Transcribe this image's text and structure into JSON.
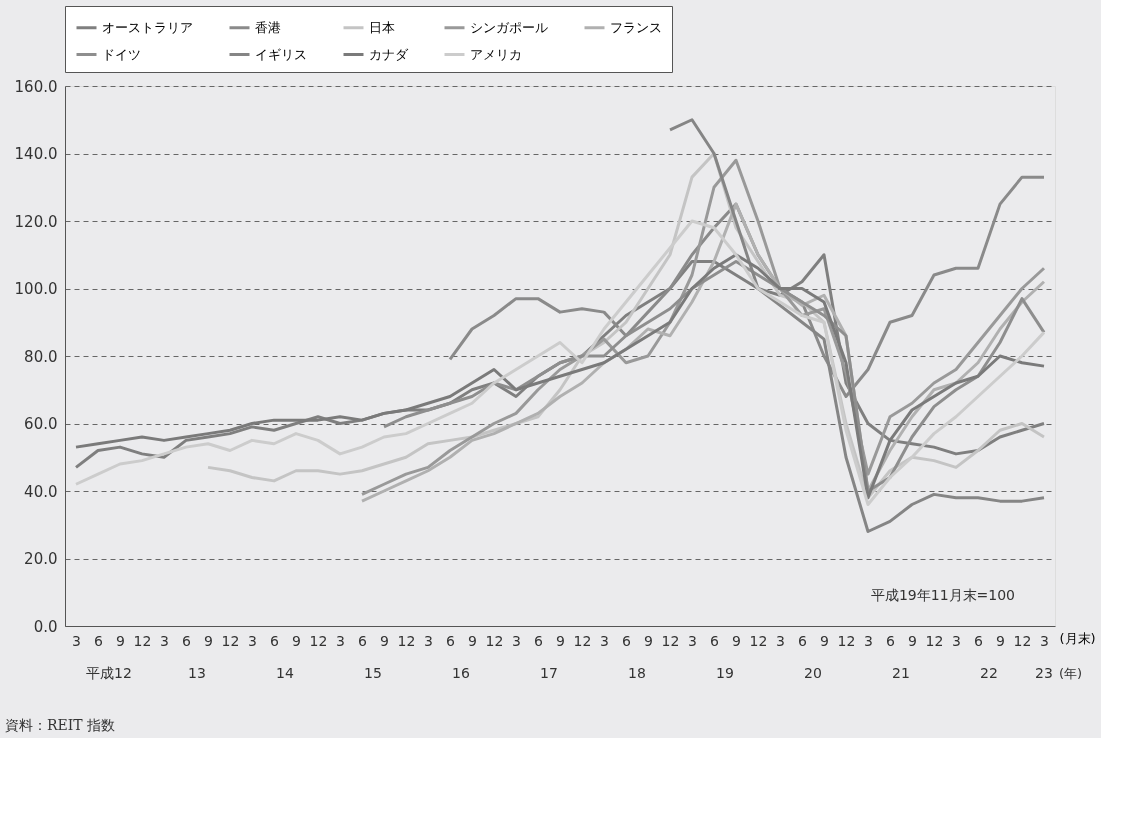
{
  "chart_data": {
    "type": "line",
    "categories": [
      "3",
      "6",
      "9",
      "12",
      "3",
      "6",
      "9",
      "12",
      "3",
      "6",
      "9",
      "12",
      "3",
      "6",
      "9",
      "12",
      "3",
      "6",
      "9",
      "12",
      "3",
      "6",
      "9",
      "12",
      "3",
      "6",
      "9",
      "12",
      "3",
      "6",
      "9",
      "12",
      "3",
      "6",
      "9",
      "12",
      "3",
      "6",
      "9",
      "12",
      "3",
      "6",
      "9",
      "12",
      "3"
    ],
    "series": [
      {
        "name": "オーストラリア",
        "color": "#7f7f7f",
        "values": [
          47,
          52,
          53,
          51,
          50,
          55,
          56,
          57,
          59,
          58,
          60,
          62,
          60,
          61,
          63,
          64,
          64,
          66,
          70,
          72,
          68,
          74,
          78,
          80,
          86,
          92,
          96,
          100,
          108,
          108,
          104,
          100,
          98,
          102,
          110,
          72,
          60,
          55,
          54,
          53,
          51,
          52,
          56,
          58,
          60
        ]
      },
      {
        "name": "香港",
        "color": "#8a8a8a",
        "values": [
          null,
          null,
          null,
          null,
          null,
          null,
          null,
          null,
          null,
          null,
          null,
          null,
          null,
          null,
          null,
          null,
          null,
          79,
          88,
          92,
          97,
          97,
          93,
          94,
          93,
          86,
          93,
          100,
          110,
          118,
          125,
          110,
          100,
          96,
          80,
          68,
          76,
          90,
          92,
          104,
          106,
          106,
          125,
          133,
          133
        ]
      },
      {
        "name": "日本",
        "color": "#c4c4c4",
        "values": [
          null,
          null,
          null,
          null,
          null,
          null,
          47,
          46,
          44,
          43,
          46,
          46,
          45,
          46,
          48,
          50,
          54,
          55,
          56,
          58,
          60,
          62,
          70,
          80,
          84,
          90,
          100,
          110,
          133,
          140,
          118,
          108,
          98,
          96,
          90,
          60,
          38,
          46,
          50,
          49,
          47,
          52,
          58,
          60,
          56
        ]
      },
      {
        "name": "シンガポール",
        "color": "#999999",
        "values": [
          null,
          null,
          null,
          null,
          null,
          null,
          null,
          null,
          null,
          null,
          null,
          null,
          null,
          39,
          42,
          45,
          47,
          52,
          56,
          60,
          63,
          70,
          76,
          80,
          85,
          78,
          80,
          90,
          104,
          130,
          138,
          120,
          100,
          92,
          94,
          75,
          45,
          62,
          66,
          72,
          76,
          84,
          92,
          100,
          106
        ]
      },
      {
        "name": "フランス",
        "color": "#b0b0b0",
        "values": [
          null,
          null,
          null,
          null,
          null,
          null,
          null,
          null,
          null,
          null,
          null,
          null,
          null,
          37,
          40,
          43,
          46,
          50,
          55,
          57,
          60,
          63,
          68,
          72,
          78,
          82,
          88,
          86,
          96,
          108,
          125,
          110,
          100,
          95,
          98,
          86,
          40,
          52,
          62,
          70,
          72,
          78,
          88,
          96,
          102
        ]
      },
      {
        "name": "ドイツ",
        "color": "#8e8e8e",
        "values": [
          null,
          null,
          null,
          null,
          null,
          null,
          null,
          null,
          null,
          null,
          null,
          null,
          null,
          null,
          59,
          62,
          64,
          66,
          68,
          72,
          70,
          74,
          78,
          80,
          80,
          86,
          90,
          94,
          100,
          104,
          108,
          104,
          100,
          96,
          92,
          86,
          40,
          44,
          56,
          65,
          70,
          74,
          84,
          97,
          87
        ]
      },
      {
        "name": "イギリス",
        "color": "#858585",
        "values": [
          null,
          null,
          null,
          null,
          null,
          null,
          null,
          null,
          null,
          null,
          null,
          null,
          null,
          null,
          null,
          null,
          null,
          null,
          null,
          null,
          null,
          null,
          null,
          null,
          null,
          null,
          null,
          147,
          150,
          140,
          120,
          100,
          95,
          90,
          85,
          50,
          28,
          31,
          36,
          39,
          38,
          38,
          37,
          37,
          38
        ]
      },
      {
        "name": "カナダ",
        "color": "#7a7a7a",
        "values": [
          53,
          54,
          55,
          56,
          55,
          56,
          57,
          58,
          60,
          61,
          61,
          61,
          62,
          61,
          63,
          64,
          66,
          68,
          72,
          76,
          70,
          72,
          74,
          76,
          78,
          82,
          86,
          90,
          100,
          106,
          110,
          106,
          100,
          100,
          96,
          78,
          38,
          55,
          64,
          68,
          72,
          74,
          80,
          78,
          77
        ]
      },
      {
        "name": "アメリカ",
        "color": "#cccccc",
        "values": [
          42,
          45,
          48,
          49,
          51,
          53,
          54,
          52,
          55,
          54,
          57,
          55,
          51,
          53,
          56,
          57,
          60,
          63,
          66,
          72,
          76,
          80,
          84,
          78,
          88,
          96,
          104,
          112,
          120,
          118,
          110,
          100,
          96,
          92,
          90,
          58,
          36,
          44,
          50,
          57,
          62,
          68,
          74,
          80,
          87
        ]
      }
    ],
    "xlabel": "(月末)",
    "ylim": [
      0,
      160
    ],
    "yticks": [
      {
        "value": 0,
        "label": "0.0"
      },
      {
        "value": 20,
        "label": "20.0"
      },
      {
        "value": 40,
        "label": "40.0"
      },
      {
        "value": 60,
        "label": "60.0"
      },
      {
        "value": 80,
        "label": "80.0"
      },
      {
        "value": 100,
        "label": "100.0"
      },
      {
        "value": 120,
        "label": "120.0"
      },
      {
        "value": 140,
        "label": "140.0"
      },
      {
        "value": 160,
        "label": "160.0"
      }
    ],
    "grid": "y",
    "legend": "top",
    "line_style": "solid",
    "annotations": [
      "平成12",
      "13",
      "14",
      "15",
      "16",
      "17",
      "18",
      "19",
      "20",
      "21",
      "22",
      "23",
      "(年)",
      "平成19年11月末=100",
      "資料：REIT 指数"
    ]
  }
}
